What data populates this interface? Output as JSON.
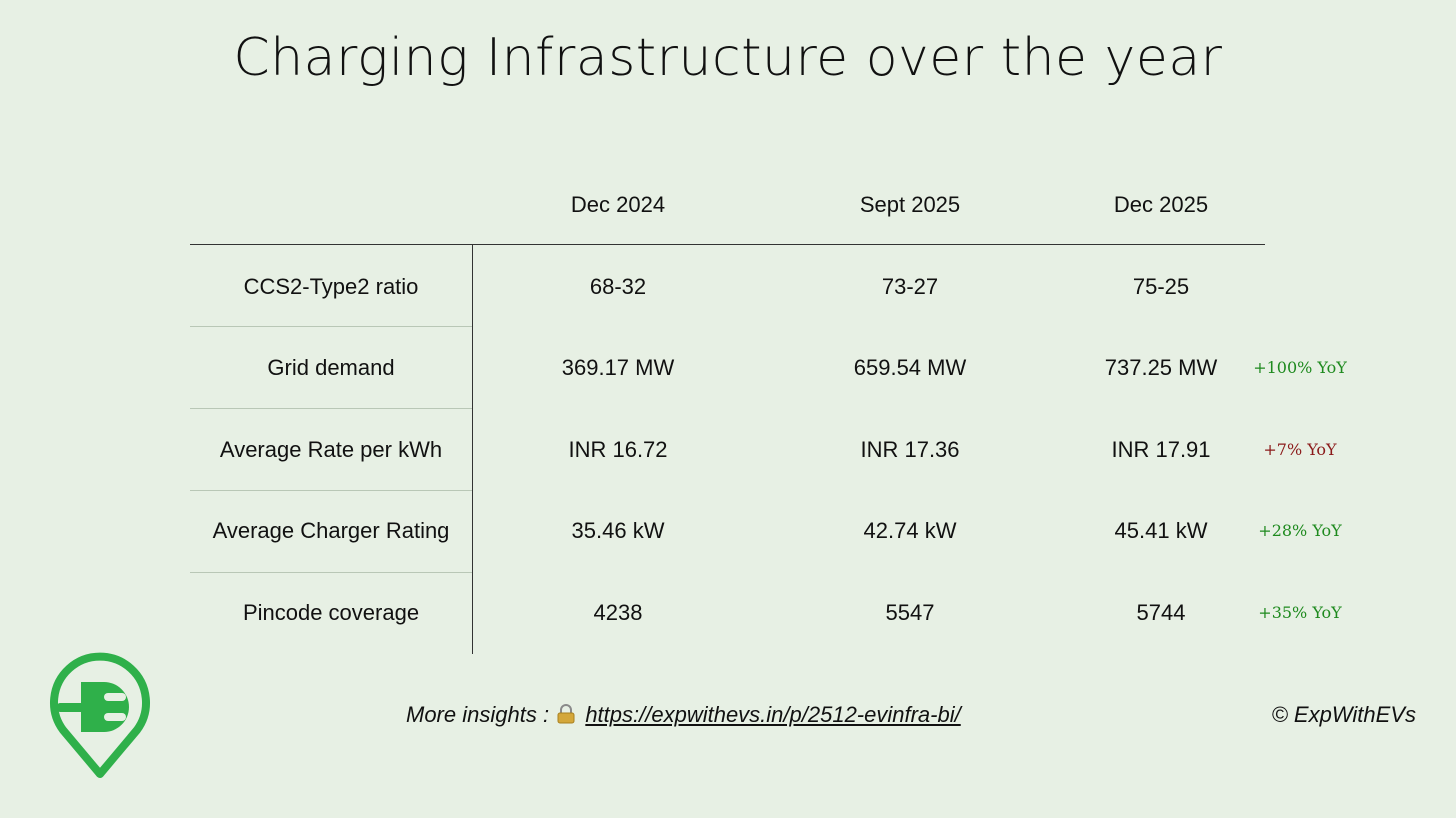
{
  "title": "Charging Infrastructure over the year",
  "columns": [
    "Dec 2024",
    "Sept 2025",
    "Dec 2025"
  ],
  "rows": [
    {
      "label": "CCS2-Type2 ratio",
      "values": [
        "68-32",
        "73-27",
        "75-25"
      ],
      "yoy": "",
      "yoy_color": ""
    },
    {
      "label": "Grid demand",
      "values": [
        "369.17 MW",
        "659.54 MW",
        "737.25 MW"
      ],
      "yoy": "+100% YoY",
      "yoy_color": "#1e8a1e"
    },
    {
      "label": "Average Rate per kWh",
      "values": [
        "INR 16.72",
        "INR 17.36",
        "INR 17.91"
      ],
      "yoy": "+7% YoY",
      "yoy_color": "#8b1a1a"
    },
    {
      "label": "Average Charger Rating",
      "values": [
        "35.46 kW",
        "42.74 kW",
        "45.41 kW"
      ],
      "yoy": "+28% YoY",
      "yoy_color": "#1e8a1e"
    },
    {
      "label": "Pincode coverage",
      "values": [
        "4238",
        "5547",
        "5744"
      ],
      "yoy": "+35% YoY",
      "yoy_color": "#1e8a1e"
    }
  ],
  "footer": {
    "prefix": "More insights :",
    "link": "https://expwithevs.in/p/2512-evinfra-bi/",
    "lock_icon": "lock-icon"
  },
  "copyright": "© ExpWithEVs",
  "logo": {
    "icon": "ev-plug-pin-icon",
    "color": "#2fb04a"
  }
}
